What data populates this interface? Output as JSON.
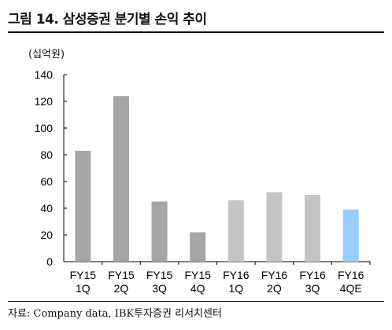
{
  "header": {
    "title": "그림 14. 삼성증권 분기별 손익 추이"
  },
  "footer": {
    "source": "자료: Company data, IBK투자증권 리서치센터"
  },
  "chart_data": {
    "type": "bar",
    "unit_label": "(십억원)",
    "categories": [
      [
        "FY15",
        "1Q"
      ],
      [
        "FY15",
        "2Q"
      ],
      [
        "FY15",
        "3Q"
      ],
      [
        "FY15",
        "4Q"
      ],
      [
        "FY16",
        "1Q"
      ],
      [
        "FY16",
        "2Q"
      ],
      [
        "FY16",
        "3Q"
      ],
      [
        "FY16",
        "4QE"
      ]
    ],
    "values": [
      83,
      124,
      45,
      22,
      46,
      52,
      50,
      39
    ],
    "bar_colors": [
      "#a6a6a6",
      "#a6a6a6",
      "#a6a6a6",
      "#a6a6a6",
      "#c4c4c4",
      "#c4c4c4",
      "#c4c4c4",
      "#99ccff"
    ],
    "ylim": [
      0,
      140
    ],
    "yticks": [
      0,
      20,
      40,
      60,
      80,
      100,
      120,
      140
    ],
    "grid": false,
    "legend": "none"
  }
}
